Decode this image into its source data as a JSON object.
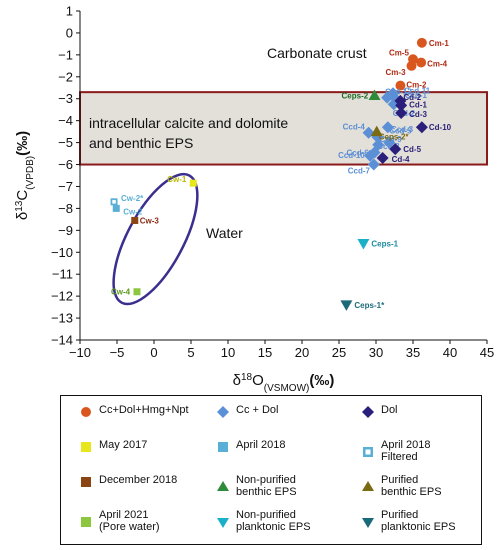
{
  "chart_data": {
    "type": "scatter",
    "title": "",
    "xlabel_main": "δ",
    "xlabel_sup": "18",
    "xlabel_rest": "O",
    "xlabel_sub": "(VSMOW)",
    "xlabel_unit": "(‰)",
    "ylabel_main": "δ",
    "ylabel_sup": "13",
    "ylabel_rest": "C",
    "ylabel_sub": "(VPDB)",
    "ylabel_unit": "(‰)",
    "xlim": [
      -10,
      45
    ],
    "ylim": [
      -14,
      1
    ],
    "xticks": [
      -10,
      -5,
      0,
      5,
      10,
      15,
      20,
      25,
      30,
      35,
      40,
      45
    ],
    "yticks": [
      1,
      0,
      -1,
      -2,
      -3,
      -4,
      -5,
      -6,
      -7,
      -8,
      -9,
      -10,
      -11,
      -12,
      -13,
      -14
    ],
    "grid": false,
    "annotations": {
      "carbonate_crust": "Carbonate crust",
      "band_line1": "intracellular calcite and dolomite",
      "band_line2": "and benthic EPS",
      "water": "Water"
    },
    "band": {
      "y_range": [
        -6,
        -2.7
      ],
      "fill": "#e3dfd9",
      "stroke": "#8b1a1a"
    },
    "water_ellipse": {
      "stroke": "#3a2f8f"
    },
    "series": [
      {
        "name": "Cc+Dol+Hmg+Npt",
        "marker": "circle",
        "color": "#d9571e",
        "label_color": "#b02a12",
        "points": [
          {
            "label": "Cm-1",
            "x": 36.2,
            "y": -0.45
          },
          {
            "label": "Cm-5",
            "x": 35.0,
            "y": -1.2
          },
          {
            "label": "Cm-4",
            "x": 36.1,
            "y": -1.35
          },
          {
            "label": "Cm-3",
            "x": 34.8,
            "y": -1.5
          },
          {
            "label": "Cm-2",
            "x": 33.3,
            "y": -2.4
          }
        ]
      },
      {
        "name": "Cc + Dol",
        "marker": "diamond",
        "color": "#5b8fd6",
        "label_color": "#5b8fd6",
        "points": [
          {
            "label": "Ccd-1",
            "x": 32.8,
            "y": -3.05
          },
          {
            "label": "Ccd-2",
            "x": 32.4,
            "y": -3.25
          },
          {
            "label": "Ccd-3",
            "x": 31.6,
            "y": -4.3
          },
          {
            "label": "Ccd-4",
            "x": 29.0,
            "y": -4.55
          },
          {
            "label": "Ccd-5",
            "x": 31.8,
            "y": -5.0
          },
          {
            "label": "Ccd-6",
            "x": 29.8,
            "y": -5.45
          },
          {
            "label": "Ccd-7",
            "x": 29.7,
            "y": -6.0
          },
          {
            "label": "Ccd-8",
            "x": 30.3,
            "y": -5.1
          },
          {
            "label": "Ccd-9",
            "x": 30.2,
            "y": -4.75
          },
          {
            "label": "Ccd-10",
            "x": 29.2,
            "y": -5.6
          },
          {
            "label": "Ccd-11",
            "x": 32.3,
            "y": -2.75
          },
          {
            "label": "Ccd-12",
            "x": 31.5,
            "y": -2.95
          }
        ]
      },
      {
        "name": "Dol",
        "marker": "diamond",
        "color": "#2a1f7a",
        "label_color": "#2a1f7a",
        "points": [
          {
            "label": "Cd-1",
            "x": 33.4,
            "y": -3.3
          },
          {
            "label": "Cd-2",
            "x": 33.3,
            "y": -3.1
          },
          {
            "label": "Cd-3",
            "x": 33.4,
            "y": -3.65
          },
          {
            "label": "Cd-4",
            "x": 30.9,
            "y": -5.7
          },
          {
            "label": "Cd-5",
            "x": 32.6,
            "y": -5.3
          },
          {
            "label": "Cd-10",
            "x": 36.2,
            "y": -4.3
          }
        ]
      },
      {
        "name": "May 2017",
        "marker": "square",
        "color": "#e6e61a",
        "label_color": "#b8b800",
        "points": [
          {
            "label": "Cw-1",
            "x": 5.3,
            "y": -6.85
          }
        ]
      },
      {
        "name": "April 2018",
        "marker": "square",
        "color": "#5aafd6",
        "label_color": "#5aafd6",
        "points": [
          {
            "label": "Cw-2",
            "x": -5.1,
            "y": -8.0
          }
        ]
      },
      {
        "name": "April 2018 Filtered",
        "marker": "square-open",
        "color": "#5aafd6",
        "label_color": "#5aafd6",
        "points": [
          {
            "label": "Cw-2*",
            "x": -5.4,
            "y": -7.7
          }
        ]
      },
      {
        "name": "December 2018",
        "marker": "square",
        "color": "#8b4513",
        "label_color": "#8b2a12",
        "points": [
          {
            "label": "Cw-3",
            "x": -2.6,
            "y": -8.55
          }
        ]
      },
      {
        "name": "April 2021 (Pore water)",
        "marker": "square",
        "color": "#8dc63f",
        "label_color": "#5a9a1a",
        "points": [
          {
            "label": "Cw-4",
            "x": -2.3,
            "y": -11.8
          }
        ]
      },
      {
        "name": "Non-purified benthic EPS",
        "marker": "triangle-up",
        "color": "#2e8b3a",
        "label_color": "#1a6b26",
        "points": [
          {
            "label": "Ceps-2",
            "x": 29.8,
            "y": -2.85
          }
        ]
      },
      {
        "name": "Purified benthic EPS",
        "marker": "triangle-up",
        "color": "#7a6a14",
        "label_color": "#7a6a14",
        "points": [
          {
            "label": "Ceps-2*",
            "x": 30.1,
            "y": -4.5
          }
        ]
      },
      {
        "name": "Non-purified planktonic EPS",
        "marker": "triangle-down",
        "color": "#1ab0c8",
        "label_color": "#1a8aa0",
        "points": [
          {
            "label": "Ceps-1",
            "x": 28.3,
            "y": -9.6
          }
        ]
      },
      {
        "name": "Purified planktonic EPS",
        "marker": "triangle-down",
        "color": "#1a6a7a",
        "label_color": "#1a6a7a",
        "points": [
          {
            "label": "Ceps-1*",
            "x": 26.0,
            "y": -12.4
          }
        ]
      }
    ]
  },
  "legend": {
    "items": [
      {
        "label_lines": [
          "Cc+Dol+Hmg+Npt"
        ]
      },
      {
        "label_lines": [
          "Cc + Dol"
        ]
      },
      {
        "label_lines": [
          "Dol"
        ]
      },
      {
        "label_lines": [
          "May 2017"
        ]
      },
      {
        "label_lines": [
          "April 2018"
        ]
      },
      {
        "label_lines": [
          "April 2018",
          "Filtered"
        ]
      },
      {
        "label_lines": [
          "December 2018"
        ]
      },
      {
        "label_lines": [
          "Non-purified",
          "benthic EPS"
        ]
      },
      {
        "label_lines": [
          "Purified",
          "benthic EPS"
        ]
      },
      {
        "label_lines": [
          "April 2021",
          "(Pore water)"
        ]
      },
      {
        "label_lines": [
          "Non-purified",
          "planktonic EPS"
        ]
      },
      {
        "label_lines": [
          "Purified",
          "planktonic EPS"
        ]
      }
    ]
  }
}
